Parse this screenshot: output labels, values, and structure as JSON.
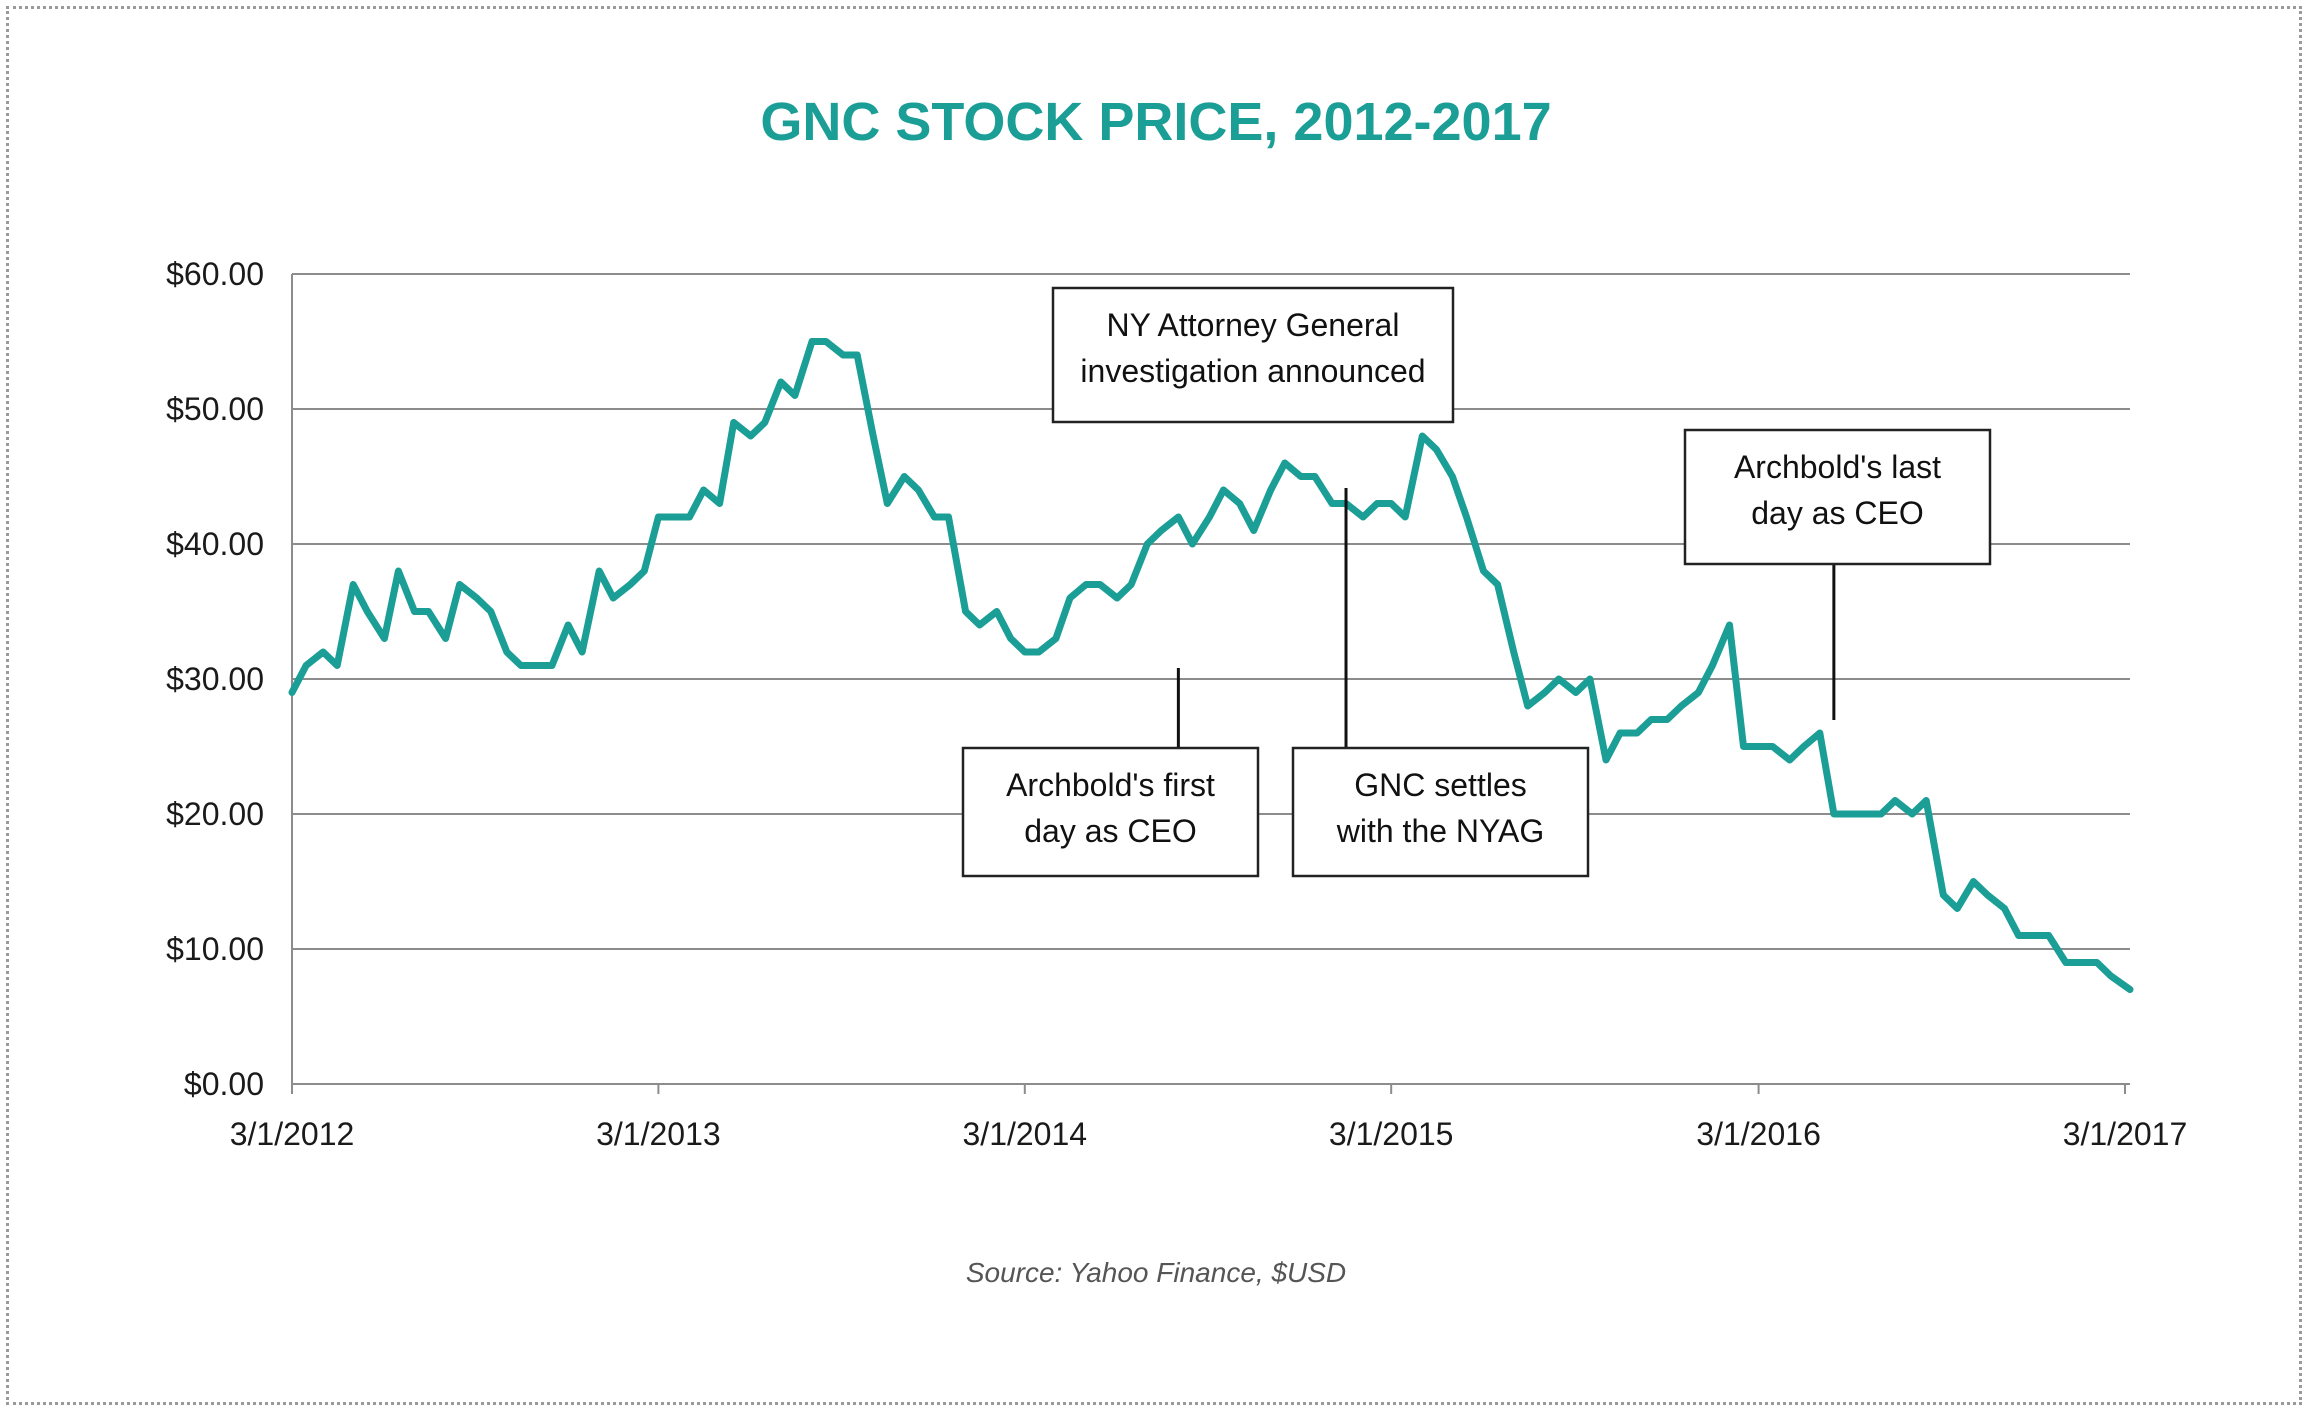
{
  "chart_data": {
    "type": "line",
    "title": "GNC STOCK PRICE, 2012-2017",
    "source": "Source: Yahoo Finance, $USD",
    "xlabel": "",
    "ylabel": "",
    "ylim": [
      0,
      60
    ],
    "y_ticks": [
      0,
      10,
      20,
      30,
      40,
      50,
      60
    ],
    "y_tick_labels": [
      "$0.00",
      "$10.00",
      "$20.00",
      "$30.00",
      "$40.00",
      "$50.00",
      "$60.00"
    ],
    "x_range": [
      "3/1/2012",
      "3/6/2017"
    ],
    "x_ticks": [
      "3/1/2012",
      "3/1/2013",
      "3/1/2014",
      "3/1/2015",
      "3/1/2016",
      "3/1/2017"
    ],
    "grid": "horizontal",
    "line_color": "#1a9e96",
    "series": [
      {
        "dates": [
          "3/1/2012",
          "3/15/2012",
          "4/1/2012",
          "4/15/2012",
          "5/1/2012",
          "5/15/2012",
          "6/1/2012",
          "6/15/2012",
          "7/1/2012",
          "7/15/2012",
          "8/1/2012",
          "8/15/2012",
          "9/1/2012",
          "9/15/2012",
          "10/1/2012",
          "10/15/2012",
          "11/1/2012",
          "11/15/2012",
          "12/1/2012",
          "12/15/2012",
          "1/1/2013",
          "1/15/2013",
          "2/1/2013",
          "2/15/2013",
          "3/1/2013",
          "3/15/2013",
          "4/1/2013",
          "4/15/2013",
          "5/1/2013",
          "5/15/2013",
          "6/1/2013",
          "6/15/2013",
          "7/1/2013",
          "7/15/2013",
          "8/1/2013",
          "8/15/2013",
          "9/1/2013",
          "9/15/2013",
          "10/1/2013",
          "10/15/2013",
          "11/1/2013",
          "11/15/2013",
          "12/1/2013",
          "12/15/2013",
          "1/1/2014",
          "1/15/2014",
          "2/1/2014",
          "2/15/2014",
          "3/1/2014",
          "3/15/2014",
          "4/1/2014",
          "4/15/2014",
          "5/1/2014",
          "5/15/2014",
          "6/1/2014",
          "6/15/2014",
          "7/1/2014",
          "7/15/2014",
          "8/1/2014",
          "8/15/2014",
          "9/1/2014",
          "9/15/2014",
          "10/1/2014",
          "10/15/2014",
          "11/1/2014",
          "11/15/2014",
          "12/1/2014",
          "12/15/2014",
          "1/1/2015",
          "1/15/2015",
          "2/1/2015",
          "2/15/2015",
          "3/1/2015",
          "3/15/2015",
          "4/1/2015",
          "4/15/2015",
          "5/1/2015",
          "5/15/2015",
          "6/1/2015",
          "6/15/2015",
          "7/1/2015",
          "7/15/2015",
          "8/1/2015",
          "8/15/2015",
          "9/1/2015",
          "9/15/2015",
          "10/1/2015",
          "10/15/2015",
          "11/1/2015",
          "11/15/2015",
          "12/1/2015",
          "12/15/2015",
          "1/1/2016",
          "1/15/2016",
          "2/1/2016",
          "2/15/2016",
          "3/1/2016",
          "3/15/2016",
          "4/1/2016",
          "4/15/2016",
          "5/1/2016",
          "5/15/2016",
          "6/1/2016",
          "6/15/2016",
          "7/1/2016",
          "7/15/2016",
          "8/1/2016",
          "8/15/2016",
          "9/1/2016",
          "9/15/2016",
          "10/1/2016",
          "10/15/2016",
          "11/1/2016",
          "11/15/2016",
          "12/1/2016",
          "12/15/2016",
          "1/1/2017",
          "1/15/2017",
          "2/1/2017",
          "2/15/2017",
          "3/6/2017"
        ],
        "values": [
          29,
          31,
          32,
          31,
          37,
          35,
          33,
          38,
          35,
          35,
          33,
          37,
          36,
          35,
          32,
          31,
          31,
          31,
          34,
          32,
          38,
          36,
          37,
          38,
          42,
          42,
          42,
          44,
          43,
          49,
          48,
          49,
          52,
          51,
          55,
          55,
          54,
          54,
          48,
          43,
          45,
          44,
          42,
          42,
          35,
          34,
          35,
          33,
          32,
          32,
          33,
          36,
          37,
          37,
          36,
          37,
          40,
          41,
          42,
          40,
          42,
          44,
          43,
          41,
          44,
          46,
          45,
          45,
          43,
          43,
          42,
          43,
          43,
          42,
          48,
          47,
          45,
          42,
          38,
          37,
          32,
          28,
          29,
          30,
          29,
          30,
          24,
          26,
          26,
          27,
          27,
          28,
          29,
          31,
          34,
          25,
          25,
          25,
          24,
          25,
          26,
          20,
          20,
          20,
          20,
          21,
          20,
          21,
          14,
          13,
          15,
          14,
          13,
          11,
          11,
          11,
          9,
          9,
          9,
          8,
          7
        ]
      }
    ],
    "annotations": [
      {
        "date": "12/1/2014",
        "lines": [
          "NY Attorney General",
          "investigation announced"
        ],
        "box_position": "above"
      },
      {
        "date": "8/1/2014",
        "lines": [
          "Archbold's first",
          "day as CEO"
        ],
        "box_position": "below"
      },
      {
        "date": "1/15/2015",
        "lines": [
          "GNC settles",
          "with the NYAG"
        ],
        "box_position": "below"
      },
      {
        "date": "5/15/2016",
        "lines": [
          "Archbold's last",
          "day as CEO"
        ],
        "box_position": "above"
      }
    ]
  }
}
